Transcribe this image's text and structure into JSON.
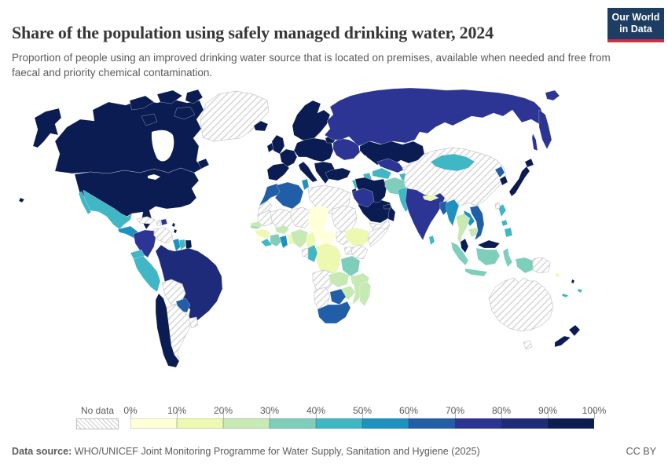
{
  "header": {
    "title": "Share of the population using safely managed drinking water, 2024",
    "subtitle": "Proportion of people using an improved drinking water source that is located on premises, available when needed and free from faecal and priority chemical contamination.",
    "logo": {
      "line1": "Our World",
      "line2": "in Data",
      "bg_color": "#1d3d63",
      "accent_color": "#cf2d43"
    }
  },
  "legend": {
    "no_data_label": "No data",
    "tick_labels": [
      "0%",
      "10%",
      "20%",
      "30%",
      "40%",
      "50%",
      "60%",
      "70%",
      "80%",
      "90%",
      "100%"
    ],
    "bin_ranges": [
      "0-10%",
      "10-20%",
      "20-30%",
      "30-40%",
      "40-50%",
      "50-60%",
      "60-70%",
      "70-80%",
      "80-90%",
      "90-100%"
    ],
    "bin_colors": [
      "#ffffd9",
      "#edf8b1",
      "#c7e9b4",
      "#7fcdbb",
      "#41b6c4",
      "#1d91c0",
      "#225ea8",
      "#2c3593",
      "#1e2b7a",
      "#0a1c52"
    ]
  },
  "footer": {
    "source_label": "Data source:",
    "source_text": "WHO/UNICEF Joint Monitoring Programme for Water Supply, Sanitation and Hygiene (2025)",
    "license": "CC BY"
  },
  "chart_data": {
    "type": "choropleth_map",
    "title": "Share of the population using safely managed drinking water, 2024",
    "unit": "% of population",
    "legend_bins": [
      "0-10%",
      "10-20%",
      "20-30%",
      "30-40%",
      "40-50%",
      "50-60%",
      "60-70%",
      "70-80%",
      "80-90%",
      "90-100%",
      "No data"
    ],
    "note": "bin index 0 = 0-10% ... 9 = 90-100%, nd = no data; values stored in map.regions"
  },
  "map": {
    "ocean_color": "#ffffff",
    "border_color": "rgba(255,255,255,0.55)",
    "no_data": {
      "pattern_line": "#d2d2d2",
      "border": "#c9c9c9"
    },
    "regions": {
      "canada": 9,
      "usa": 9,
      "greenland": "nd",
      "iceland": 9,
      "mexico": 4,
      "central-america": 5,
      "panama": 6,
      "cuba": "nd",
      "haiti": "nd",
      "dominican-republic": 7,
      "lesser-antilles": 9,
      "hawaii": 9,
      "colombia": 7,
      "venezuela": "nd",
      "guyana": 5,
      "suriname": 4,
      "french-guiana": 9,
      "brazil": 8,
      "ecuador": 4,
      "peru": 4,
      "bolivia": "nd",
      "paraguay": 6,
      "chile": 9,
      "argentina": "nd",
      "uruguay": "nd",
      "uk": 9,
      "ireland": 9,
      "scandinavia": 9,
      "denmark": 9,
      "iberia": 9,
      "france": 9,
      "central-europe": 9,
      "italy": 9,
      "balkans": 9,
      "baltics": 9,
      "ukraine-belarus": 7,
      "russia": 7,
      "morocco": 6,
      "western-sahara": "nd",
      "algeria": 6,
      "tunisia": 5,
      "libya": "nd",
      "egypt": 7,
      "mauritania": "nd",
      "mali": "nd",
      "niger": "nd",
      "chad": 0,
      "sudan": "nd",
      "south-sudan": "nd",
      "ethiopia": 1,
      "somalia": "nd",
      "kenya": "nd",
      "uganda": "nd",
      "senegal": 2,
      "gambia": 3,
      "guinea": 1,
      "sierra-leone": 0,
      "liberia": 4,
      "cote-divoire": 3,
      "ghana": 5,
      "togo-benin": 1,
      "burkina-faso": 2,
      "nigeria": 2,
      "cameroon": 1,
      "central-african-republic": 0,
      "drc": 1,
      "congo": 4,
      "gabon": "nd",
      "angola": "nd",
      "zambia": 2,
      "tanzania": 3,
      "malawi": 2,
      "mozambique": 2,
      "zimbabwe": 2,
      "botswana": 6,
      "namibia": "nd",
      "south-africa": 6,
      "madagascar": 2,
      "turkey": 9,
      "syria": 4,
      "iraq": 6,
      "jordan-israel": 9,
      "saudi-arabia": 9,
      "yemen": "nd",
      "oman": 9,
      "uae-qatar": 9,
      "iran": 9,
      "azerbaijan": 4,
      "kazakhstan": 9,
      "turkmenistan": 4,
      "uzbekistan": 7,
      "kyrgyzstan": 6,
      "tajikistan": 4,
      "afghanistan": 3,
      "pakistan": 4,
      "india": 7,
      "nepal": 1,
      "bangladesh": 6,
      "sri-lanka": 4,
      "china": "nd",
      "mongolia": 4,
      "taiwan": "nd",
      "north-korea": 6,
      "south-korea": 9,
      "japan": 9,
      "myanmar": 5,
      "thailand": 2,
      "laos": 5,
      "cambodia": 2,
      "vietnam": 6,
      "malaysia": 9,
      "indonesia": 3,
      "philippines": 4,
      "papua-new-guinea": "nd",
      "australia": "nd",
      "tasmania": "nd",
      "new-zealand": 9,
      "fiji": 4,
      "new-caledonia": 4,
      "vanuatu": 9,
      "solomon-islands": 1
    }
  }
}
